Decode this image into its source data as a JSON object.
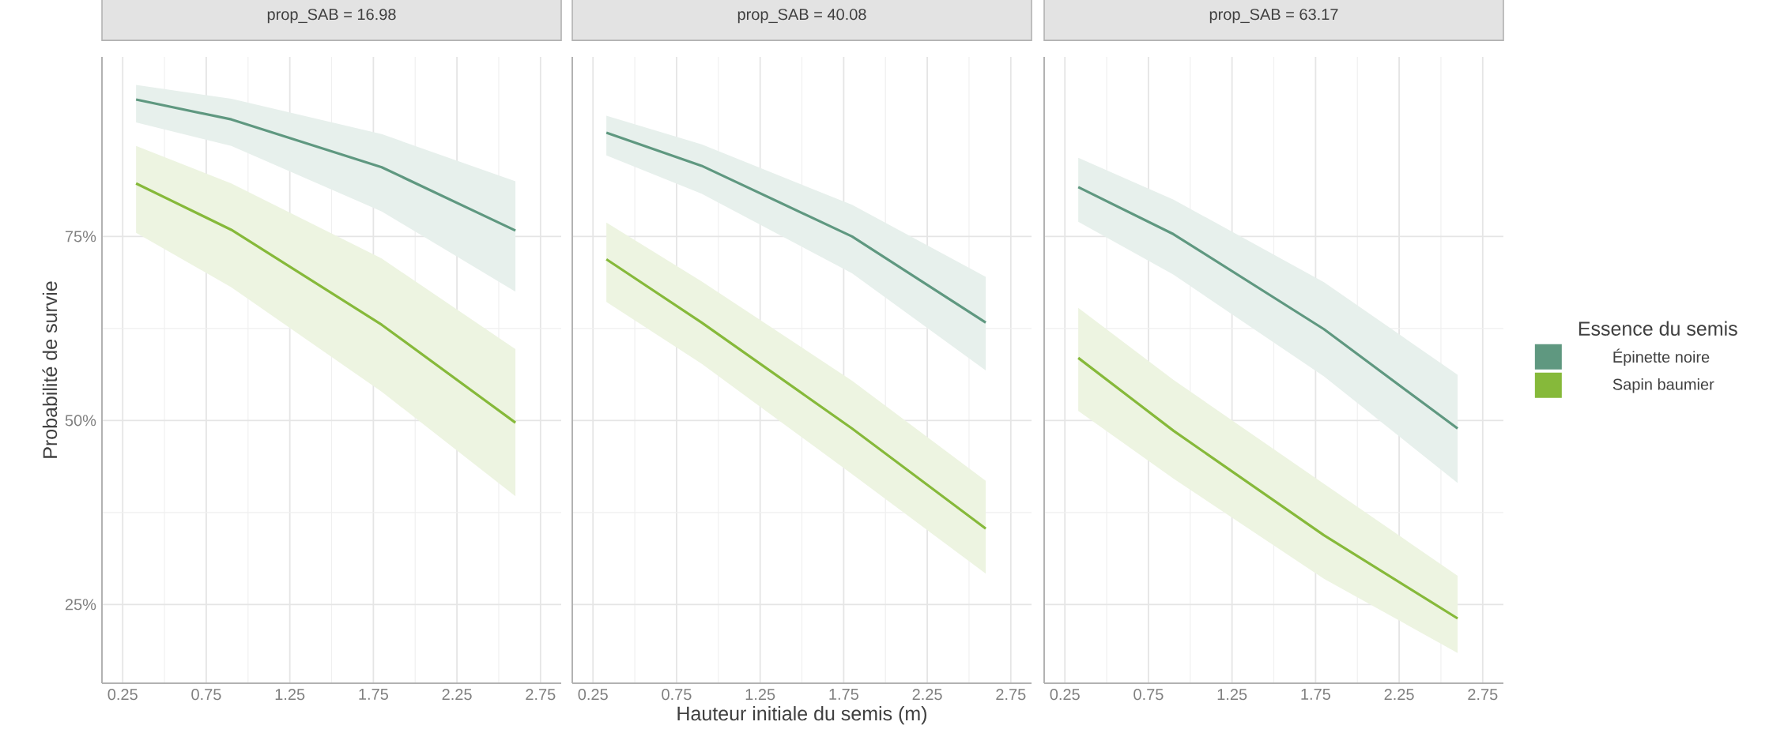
{
  "chart_data": [
    {
      "type": "line",
      "title": "prop_SAB = 16.98",
      "ylabel": "Probabilité de survie",
      "x": [
        0.33,
        0.9,
        1.8,
        2.6
      ],
      "xlim": [
        0.126,
        2.874
      ],
      "ylim": [
        14.3,
        99.4
      ],
      "xticks": [
        0.25,
        0.75,
        1.25,
        1.75,
        2.25,
        2.75
      ],
      "yticks": [
        {
          "value": 25,
          "label": "25%"
        },
        {
          "value": 50,
          "label": "50%"
        },
        {
          "value": 75,
          "label": "75%"
        }
      ],
      "grid": true,
      "series": [
        {
          "color": "#5f9880",
          "values": [
            93.6,
            90.9,
            84.4,
            75.8
          ],
          "lower": [
            90.5,
            87.3,
            78.4,
            67.5
          ],
          "upper": [
            95.6,
            93.7,
            88.9,
            82.5
          ]
        },
        {
          "color": "#86b93a",
          "values": [
            82.2,
            75.9,
            63.0,
            49.7
          ],
          "lower": [
            75.5,
            68.1,
            53.9,
            39.7
          ],
          "upper": [
            87.3,
            82.2,
            72.0,
            59.7
          ]
        }
      ]
    },
    {
      "type": "line",
      "title": "prop_SAB = 40.08",
      "xlabel": "Hauteur initiale du semis (m)",
      "x": [
        0.33,
        0.9,
        1.8,
        2.6
      ],
      "xlim": [
        0.126,
        2.874
      ],
      "ylim": [
        14.3,
        99.4
      ],
      "xticks": [
        0.25,
        0.75,
        1.25,
        1.75,
        2.25,
        2.75
      ],
      "yticks": [
        {
          "value": 25,
          "label": null
        },
        {
          "value": 50,
          "label": null
        },
        {
          "value": 75,
          "label": null
        }
      ],
      "tick_labels": "x",
      "grid": true,
      "series": [
        {
          "color": "#5f9880",
          "values": [
            89.1,
            84.6,
            75.0,
            63.3
          ],
          "lower": [
            86.0,
            80.8,
            70.0,
            56.8
          ],
          "upper": [
            91.4,
            87.5,
            79.3,
            69.5
          ]
        },
        {
          "color": "#86b93a",
          "values": [
            71.9,
            63.3,
            48.9,
            35.3
          ],
          "lower": [
            66.1,
            57.7,
            42.7,
            29.2
          ],
          "upper": [
            76.9,
            68.9,
            55.4,
            41.8
          ]
        }
      ]
    },
    {
      "type": "line",
      "title": "prop_SAB = 63.17",
      "legend_title": "Essence du semis",
      "legend": "right",
      "x": [
        0.33,
        0.9,
        1.8,
        2.6
      ],
      "xlim": [
        0.126,
        2.874
      ],
      "ylim": [
        14.3,
        99.4
      ],
      "xticks": [
        0.25,
        0.75,
        1.25,
        1.75,
        2.25,
        2.75
      ],
      "yticks": [
        {
          "value": 25,
          "label": null
        },
        {
          "value": 50,
          "label": null
        },
        {
          "value": 75,
          "label": null
        }
      ],
      "tick_labels": "x",
      "grid": true,
      "series": [
        {
          "name": "Épinette noire",
          "color": "#5f9880",
          "values": [
            81.7,
            75.3,
            62.4,
            48.9
          ],
          "lower": [
            77.0,
            69.8,
            56.0,
            41.5
          ],
          "upper": [
            85.7,
            80.0,
            68.8,
            56.2
          ]
        },
        {
          "name": "Sapin baumier",
          "color": "#86b93a",
          "values": [
            58.5,
            48.6,
            34.4,
            23.1
          ],
          "lower": [
            51.3,
            42.1,
            28.5,
            18.4
          ],
          "upper": [
            65.3,
            55.5,
            41.4,
            28.9
          ]
        }
      ]
    }
  ]
}
